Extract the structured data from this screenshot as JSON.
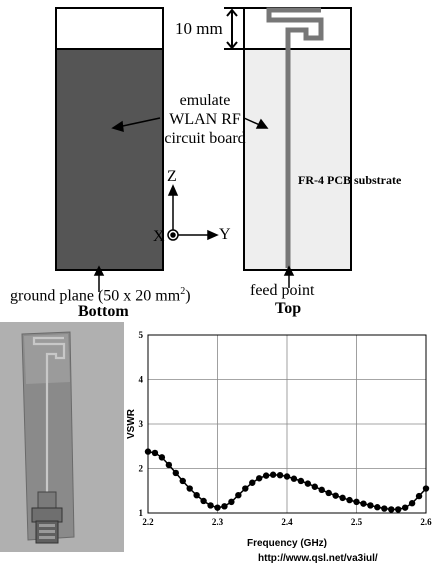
{
  "diagram": {
    "dimension_label": "10 mm",
    "center_label_lines": [
      "emulate",
      "WLAN RF",
      "circuit board"
    ],
    "substrate_label": "FR-4 PCB substrate",
    "axes": {
      "z": "Z",
      "x": "X",
      "y": "Y"
    },
    "ground_plane_label": "ground plane (50 x 20 mm",
    "ground_plane_sup": "2",
    "ground_plane_close": ")",
    "feed_label": "feed point",
    "bottom_caption": "Bottom",
    "top_caption": "Top",
    "colors": {
      "ground": "#555555",
      "substrate": "#eeeeee",
      "trace": "#777777"
    }
  },
  "photo": {
    "subject": "fabricated antenna with SMA connector"
  },
  "chart_data": {
    "type": "line",
    "xlabel": "Frequency (GHz)",
    "ylabel": "VSWR",
    "xlim": [
      2.2,
      2.6
    ],
    "ylim": [
      1,
      5
    ],
    "x_ticks": [
      "2.2",
      "2.3",
      "2.4",
      "2.5",
      "2.6"
    ],
    "y_ticks": [
      "1",
      "2",
      "3",
      "4",
      "5"
    ],
    "grid": true,
    "series": [
      {
        "x": [
          2.2,
          2.21,
          2.22,
          2.23,
          2.24,
          2.25,
          2.26,
          2.27,
          2.28,
          2.29,
          2.3,
          2.31,
          2.32,
          2.33,
          2.34,
          2.35,
          2.36,
          2.37,
          2.38,
          2.39,
          2.4,
          2.41,
          2.42,
          2.43,
          2.44,
          2.45,
          2.46,
          2.47,
          2.48,
          2.49,
          2.5,
          2.51,
          2.52,
          2.53,
          2.54,
          2.55,
          2.56,
          2.57,
          2.58,
          2.59,
          2.6
        ],
        "y": [
          2.38,
          2.35,
          2.25,
          2.08,
          1.9,
          1.72,
          1.55,
          1.4,
          1.27,
          1.17,
          1.12,
          1.15,
          1.25,
          1.4,
          1.55,
          1.68,
          1.78,
          1.84,
          1.86,
          1.85,
          1.82,
          1.77,
          1.72,
          1.66,
          1.59,
          1.52,
          1.45,
          1.39,
          1.34,
          1.29,
          1.25,
          1.21,
          1.17,
          1.13,
          1.1,
          1.08,
          1.08,
          1.12,
          1.22,
          1.38,
          1.55
        ]
      }
    ]
  },
  "watermark": "http://www.qsl.net/va3iul/"
}
